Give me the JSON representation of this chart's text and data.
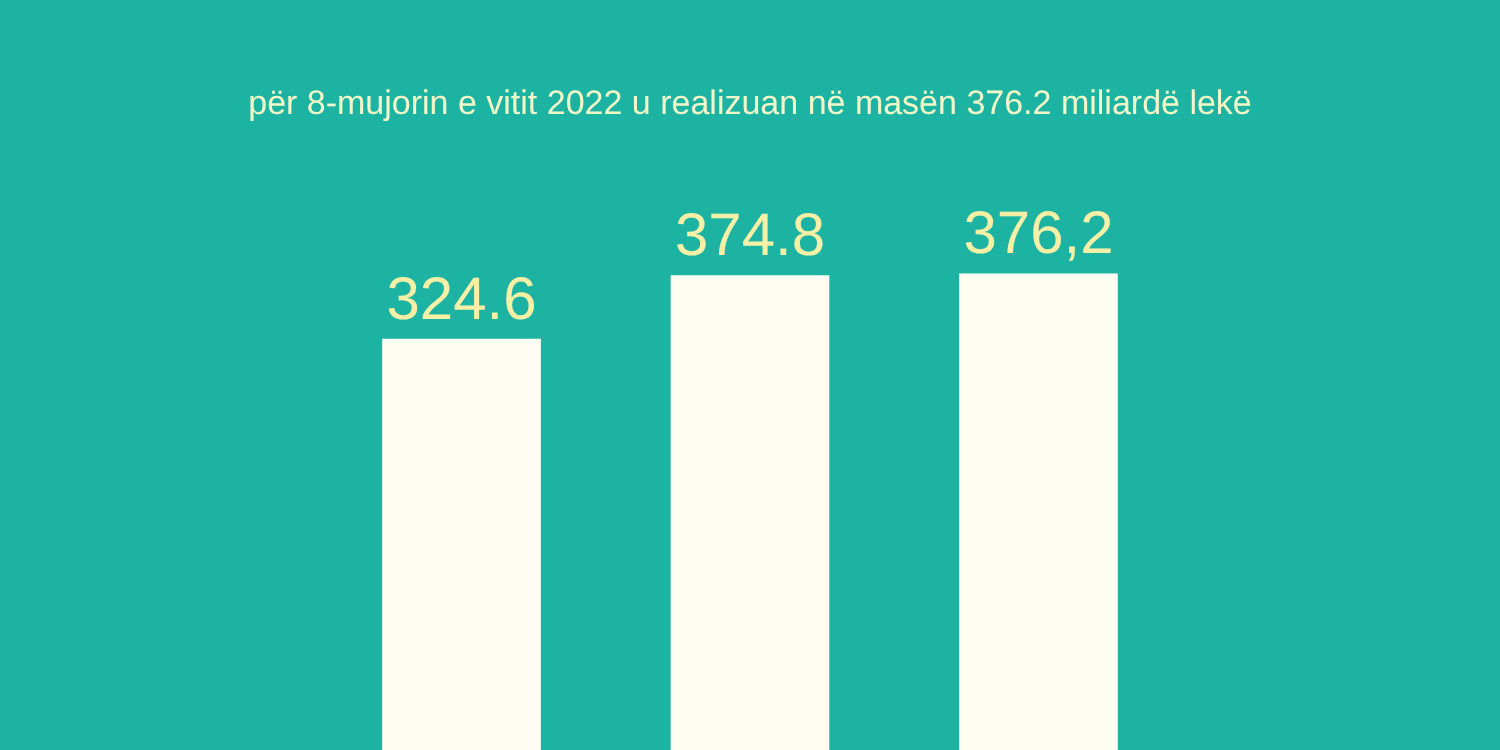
{
  "chart_data": {
    "type": "bar",
    "subtitle": "për 8-mujorin e vitit 2022 u realizuan në masën 376.2 miliardë lekë",
    "categories": [
      null,
      null,
      null
    ],
    "values": [
      324.6,
      374.8,
      376.2
    ],
    "value_labels": [
      "324.6",
      "374.8",
      "376,2"
    ],
    "color": "#fffdf2"
  }
}
